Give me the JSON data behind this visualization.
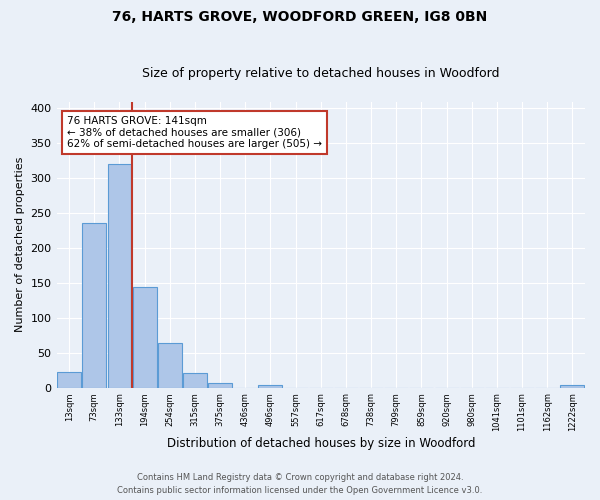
{
  "title": "76, HARTS GROVE, WOODFORD GREEN, IG8 0BN",
  "subtitle": "Size of property relative to detached houses in Woodford",
  "xlabel": "Distribution of detached houses by size in Woodford",
  "ylabel": "Number of detached properties",
  "bar_labels": [
    "13sqm",
    "73sqm",
    "133sqm",
    "194sqm",
    "254sqm",
    "315sqm",
    "375sqm",
    "436sqm",
    "496sqm",
    "557sqm",
    "617sqm",
    "678sqm",
    "738sqm",
    "799sqm",
    "859sqm",
    "920sqm",
    "980sqm",
    "1041sqm",
    "1101sqm",
    "1162sqm",
    "1222sqm"
  ],
  "bar_values": [
    22,
    236,
    320,
    144,
    64,
    21,
    7,
    0,
    3,
    0,
    0,
    0,
    0,
    0,
    0,
    0,
    0,
    0,
    0,
    0,
    3
  ],
  "bar_color": "#aec6e8",
  "bar_edge_color": "#5b9bd5",
  "vline_x": 2.5,
  "vline_color": "#c0392b",
  "annotation_title": "76 HARTS GROVE: 141sqm",
  "annotation_line1": "← 38% of detached houses are smaller (306)",
  "annotation_line2": "62% of semi-detached houses are larger (505) →",
  "annotation_box_color": "white",
  "annotation_box_edge": "#c0392b",
  "ylim": [
    0,
    410
  ],
  "yticks": [
    0,
    50,
    100,
    150,
    200,
    250,
    300,
    350,
    400
  ],
  "bg_color": "#eaf0f8",
  "plot_bg_color": "#eaf0f8",
  "footer_line1": "Contains HM Land Registry data © Crown copyright and database right 2024.",
  "footer_line2": "Contains public sector information licensed under the Open Government Licence v3.0.",
  "title_fontsize": 10,
  "subtitle_fontsize": 9
}
